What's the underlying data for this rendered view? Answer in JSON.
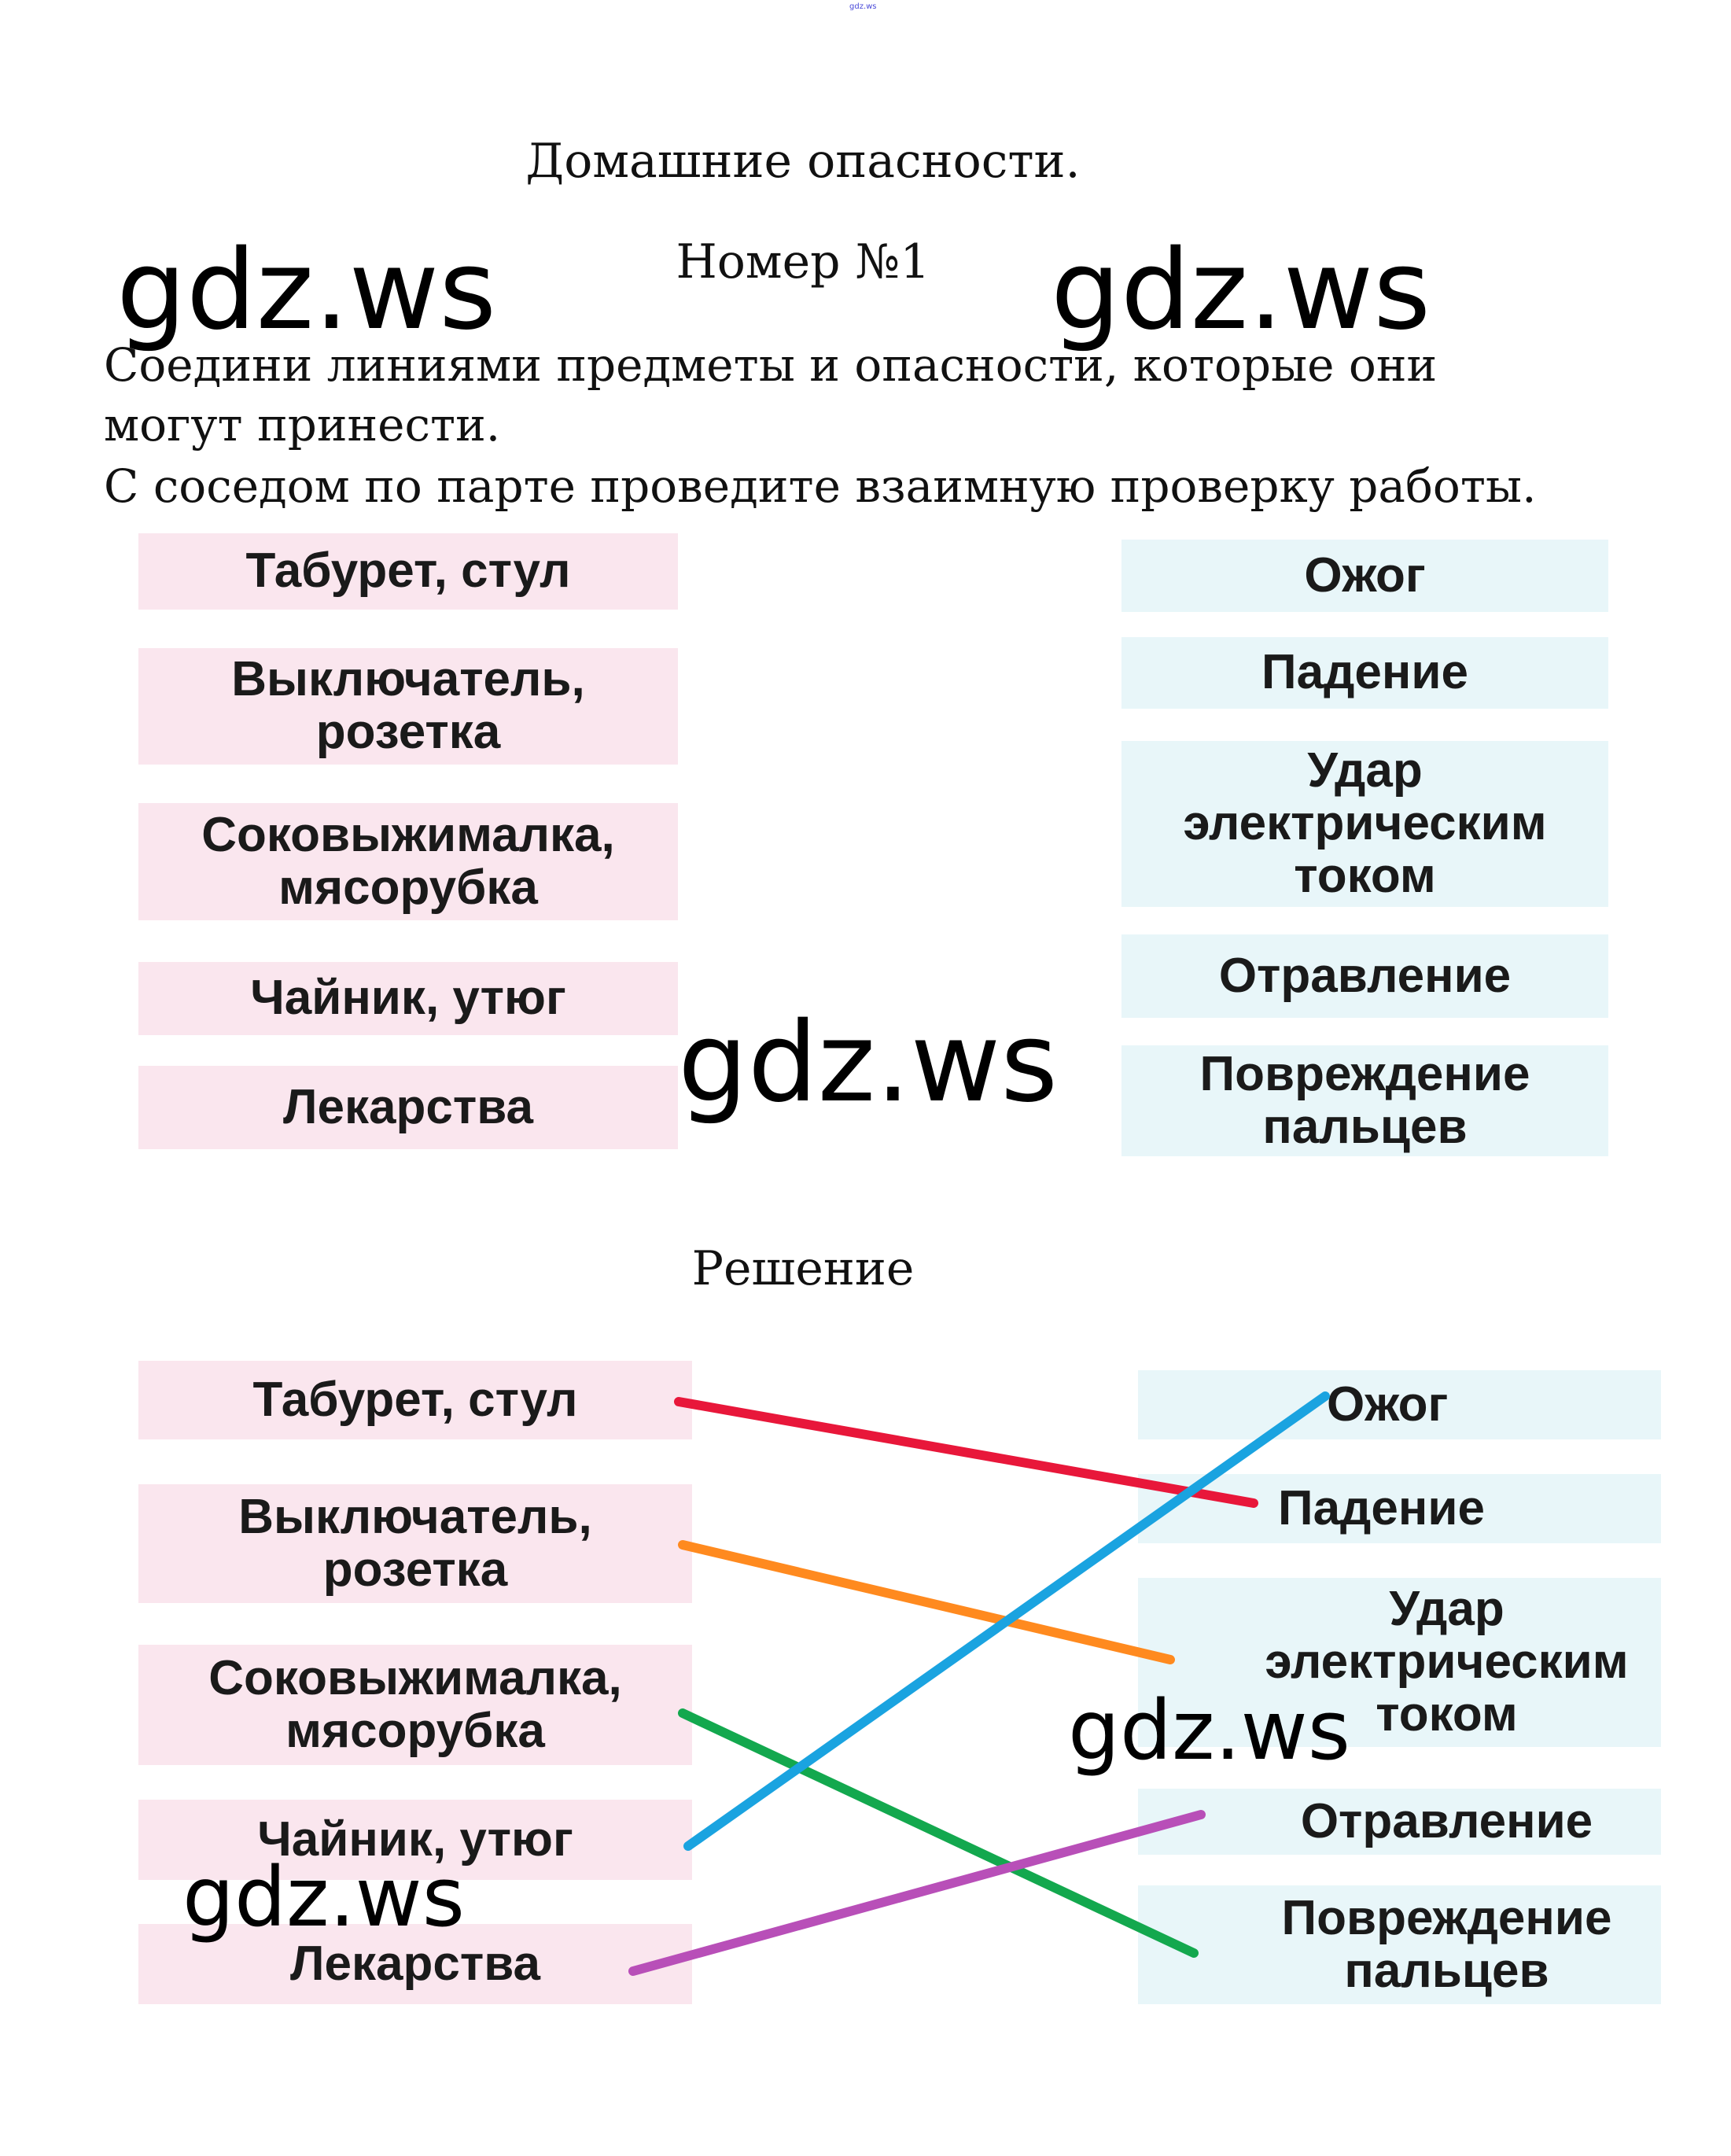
{
  "watermark_small": "gdz.ws",
  "watermark": "gdz.ws",
  "title": "Домашние опасности.",
  "number": "Номер №1",
  "instructions": [
    "Соедини линиями предметы и опасности, которые они",
    "могут принести.",
    "С соседом по парте проведите взаимную проверку работы."
  ],
  "items": [
    "Табурет,  стул",
    "Выключатель,\nрозетка",
    "Соковыжималка,\nмясорубка",
    "Чайник,  утюг",
    "Лекарства"
  ],
  "dangers": [
    "Ожог",
    "Падение",
    "Удар\nэлектрическим\nтоком",
    "Отравление",
    "Повреждение\nпальцев"
  ],
  "solution_heading": "Решение",
  "connections": [
    {
      "item": 0,
      "danger": 1,
      "color": "#e8173a"
    },
    {
      "item": 1,
      "danger": 2,
      "color": "#ff8a1f"
    },
    {
      "item": 2,
      "danger": 4,
      "color": "#13a84e"
    },
    {
      "item": 3,
      "danger": 0,
      "color": "#1aa3e0"
    },
    {
      "item": 4,
      "danger": 3,
      "color": "#b84fb8"
    }
  ]
}
